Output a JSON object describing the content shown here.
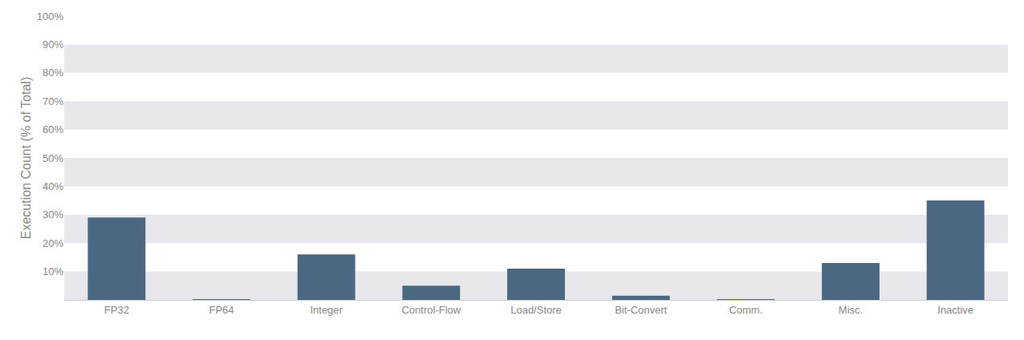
{
  "chart_data": {
    "type": "bar",
    "categories": [
      "FP32",
      "FP64",
      "Integer",
      "Control-Flow",
      "Load/Store",
      "Bit-Convert",
      "Comm.",
      "Misc.",
      "Inactive"
    ],
    "values": [
      29,
      0.2,
      16,
      5,
      11,
      1.5,
      0.1,
      13,
      35
    ],
    "color": "#4a6882",
    "ylabel": "Execution Count (% of Total)",
    "ylim": [
      0,
      100
    ],
    "yticks": [
      {
        "value": 10,
        "label": "10%"
      },
      {
        "value": 20,
        "label": "20%"
      },
      {
        "value": 30,
        "label": "30%"
      },
      {
        "value": 40,
        "label": "40%"
      },
      {
        "value": 50,
        "label": "50%"
      },
      {
        "value": 60,
        "label": "60%"
      },
      {
        "value": 70,
        "label": "70%"
      },
      {
        "value": 80,
        "label": "80%"
      },
      {
        "value": 90,
        "label": "90%"
      },
      {
        "value": 100,
        "label": "100%"
      }
    ],
    "grid": false
  }
}
